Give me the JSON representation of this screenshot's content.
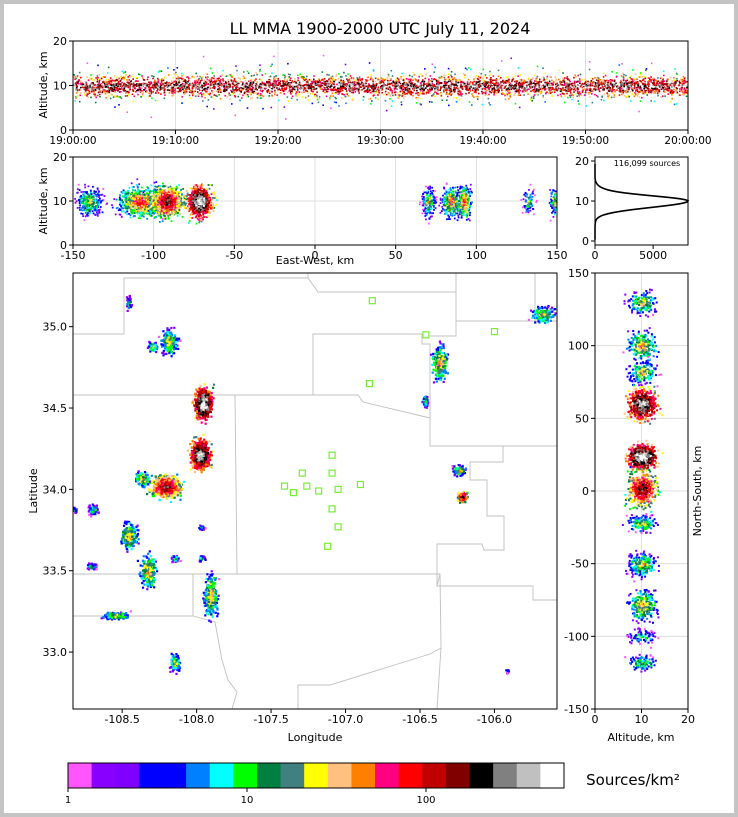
{
  "title": "LL MMA 1900-2000 UTC July 11, 2024",
  "chart_data": [
    {
      "id": "time-height",
      "type": "heatmap",
      "ylabel": "Altitude, km",
      "ylim": [
        0,
        20
      ],
      "yticks": [
        "0",
        "10",
        "20"
      ],
      "xticks": [
        "19:00:00",
        "19:10:00",
        "19:20:00",
        "19:30:00",
        "19:40:00",
        "19:50:00",
        "20:00:00"
      ]
    },
    {
      "id": "ew-altitude",
      "type": "heatmap",
      "xlabel": "East-West, km",
      "ylabel": "Altitude, km",
      "xlim": [
        -150,
        150
      ],
      "ylim": [
        0,
        20
      ],
      "xticks": [
        "-150",
        "-100",
        "-50",
        "0",
        "50",
        "100",
        "150"
      ],
      "yticks": [
        "0",
        "10",
        "20"
      ],
      "storm_cells_x_km": [
        -140,
        -95,
        -72,
        70,
        90,
        135,
        148
      ]
    },
    {
      "id": "altitude-histogram",
      "type": "line",
      "annotation": "116,099 sources",
      "xlim": [
        0,
        8000
      ],
      "ylim": [
        0,
        20
      ],
      "xticks": [
        "0",
        "5000"
      ],
      "yticks": [
        "0",
        "10",
        "20"
      ],
      "peak": {
        "altitude_km": 10,
        "sources": 8000
      }
    },
    {
      "id": "plan-view",
      "type": "heatmap",
      "xlabel": "Longitude",
      "ylabel": "Latitude",
      "xlim": [
        -108.83,
        -105.58
      ],
      "ylim": [
        32.65,
        35.33
      ],
      "xticks": [
        "-108.5",
        "-108.0",
        "-107.5",
        "-107.0",
        "-106.5",
        "-106.0"
      ],
      "yticks": [
        "33.0",
        "33.5",
        "34.0",
        "34.5",
        "35.0"
      ],
      "stations": [
        {
          "lon": -106.82,
          "lat": 35.16
        },
        {
          "lon": -106.46,
          "lat": 34.95
        },
        {
          "lon": -106.0,
          "lat": 34.97
        },
        {
          "lon": -106.84,
          "lat": 34.65
        },
        {
          "lon": -107.09,
          "lat": 34.21
        },
        {
          "lon": -107.29,
          "lat": 34.1
        },
        {
          "lon": -107.09,
          "lat": 34.1
        },
        {
          "lon": -107.41,
          "lat": 34.02
        },
        {
          "lon": -107.26,
          "lat": 34.02
        },
        {
          "lon": -107.35,
          "lat": 33.98
        },
        {
          "lon": -107.18,
          "lat": 33.99
        },
        {
          "lon": -107.05,
          "lat": 34.0
        },
        {
          "lon": -106.9,
          "lat": 34.03
        },
        {
          "lon": -107.09,
          "lat": 33.88
        },
        {
          "lon": -107.05,
          "lat": 33.77
        },
        {
          "lon": -107.12,
          "lat": 33.65
        }
      ]
    },
    {
      "id": "altitude-ns",
      "type": "heatmap",
      "xlabel": "Altitude, km",
      "ylabel": "North-South, km",
      "xlim": [
        0,
        20
      ],
      "ylim": [
        -150,
        150
      ],
      "xticks": [
        "0",
        "10",
        "20"
      ],
      "yticks": [
        "-150",
        "-100",
        "-50",
        "0",
        "50",
        "100",
        "150"
      ]
    },
    {
      "id": "colorbar",
      "type": "bar",
      "label": "Sources/km²",
      "scale": "log",
      "ticks": [
        "1",
        "10",
        "100"
      ],
      "colors": [
        "#ff55ff",
        "#8800ff",
        "#8000ff",
        "#0000ff",
        "#0000ff",
        "#0080ff",
        "#00ffff",
        "#00ff00",
        "#008040",
        "#408080",
        "#ffff00",
        "#ffc080",
        "#ff8000",
        "#ff0080",
        "#ff0000",
        "#c00000",
        "#800000",
        "#000000",
        "#808080",
        "#c0c0c0",
        "#ffffff"
      ]
    }
  ]
}
